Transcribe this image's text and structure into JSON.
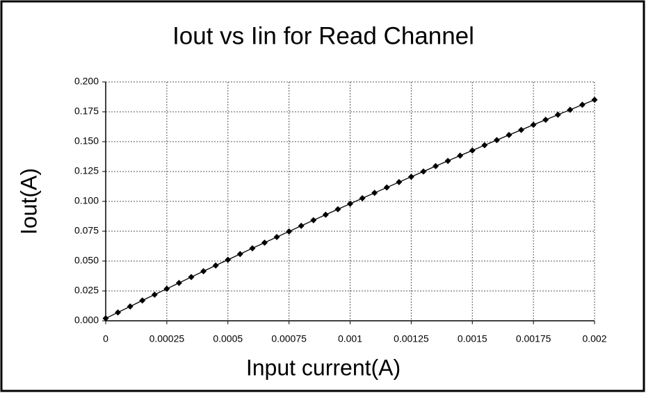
{
  "chart_data": {
    "type": "line",
    "title": "Iout vs Iin for Read Channel",
    "xlabel": "Input current(A)",
    "ylabel": "Iout(A)",
    "x": [
      0,
      5e-05,
      0.0001,
      0.00015,
      0.0002,
      0.00025,
      0.0003,
      0.00035,
      0.0004,
      0.00045,
      0.0005,
      0.00055,
      0.0006,
      0.00065,
      0.0007,
      0.00075,
      0.0008,
      0.00085,
      0.0009,
      0.00095,
      0.001,
      0.00105,
      0.0011,
      0.00115,
      0.0012,
      0.00125,
      0.0013,
      0.00135,
      0.0014,
      0.00145,
      0.0015,
      0.00155,
      0.0016,
      0.00165,
      0.0017,
      0.00175,
      0.0018,
      0.00185,
      0.0019,
      0.00195,
      0.002
    ],
    "series": [
      {
        "color": "#000000",
        "marker": "diamond",
        "values": [
          0.002,
          0.007,
          0.012,
          0.017,
          0.0219,
          0.0268,
          0.0317,
          0.0366,
          0.0415,
          0.0463,
          0.0511,
          0.0559,
          0.0607,
          0.0654,
          0.0701,
          0.0748,
          0.0795,
          0.0842,
          0.0888,
          0.0934,
          0.098,
          0.1026,
          0.1071,
          0.1116,
          0.1161,
          0.1206,
          0.125,
          0.1295,
          0.1339,
          0.1383,
          0.1426,
          0.147,
          0.1513,
          0.1556,
          0.1598,
          0.1641,
          0.1683,
          0.1725,
          0.1767,
          0.1809,
          0.185
        ]
      }
    ],
    "xlim": [
      0,
      0.002
    ],
    "xticks": [
      0,
      0.00025,
      0.0005,
      0.00075,
      0.001,
      0.00125,
      0.0015,
      0.00175,
      0.002
    ],
    "ylim": [
      0,
      0.2
    ],
    "yticks": [
      {
        "value": 0,
        "label": "0.000"
      },
      {
        "value": 0.025,
        "label": "0.025"
      },
      {
        "value": 0.05,
        "label": "0.050"
      },
      {
        "value": 0.075,
        "label": "0.075"
      },
      {
        "value": 0.1,
        "label": "0.100"
      },
      {
        "value": 0.125,
        "label": "0.125"
      },
      {
        "value": 0.15,
        "label": "0.150"
      },
      {
        "value": 0.175,
        "label": "0.175"
      },
      {
        "value": 0.2,
        "label": "0.200"
      }
    ],
    "grid": true
  }
}
